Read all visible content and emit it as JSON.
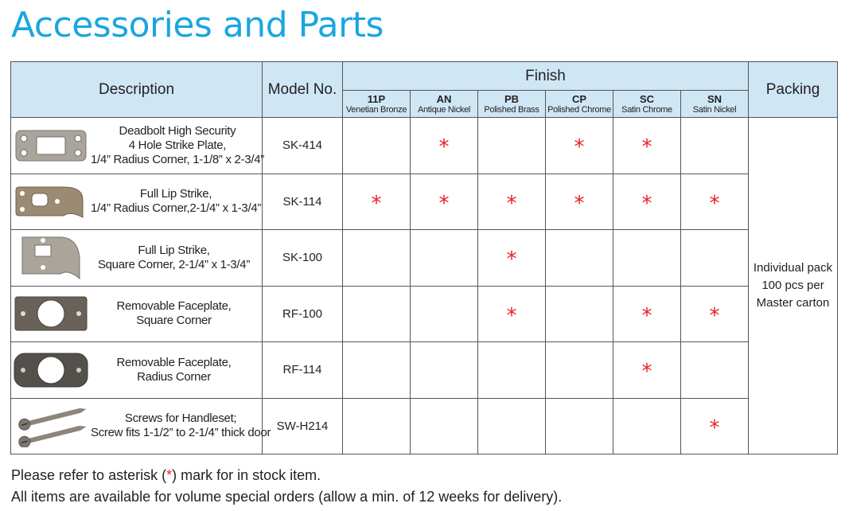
{
  "title": "Accessories and Parts",
  "headers": {
    "description": "Description",
    "model": "Model No.",
    "finish": "Finish",
    "packing": "Packing"
  },
  "finishes": [
    {
      "code": "11P",
      "name": "Venetian Bronze"
    },
    {
      "code": "AN",
      "name": "Antique Nickel"
    },
    {
      "code": "PB",
      "name": "Polished Brass"
    },
    {
      "code": "CP",
      "name": "Polished Chrome"
    },
    {
      "code": "SC",
      "name": "Satin Chrome"
    },
    {
      "code": "SN",
      "name": "Satin Nickel"
    }
  ],
  "rows": [
    {
      "desc": [
        "Deadbolt High Security",
        "4 Hole Strike Plate,",
        "1/4” Radius Corner, 1-1/8” x 2-3/4”"
      ],
      "model": "SK-414",
      "stock": [
        false,
        true,
        false,
        true,
        true,
        false
      ],
      "image": "deadbolt-strike-plate-image"
    },
    {
      "desc": [
        "Full Lip Strike,",
        "1/4” Radius Corner,2-1/4” x 1-3/4”"
      ],
      "model": "SK-114",
      "stock": [
        true,
        true,
        true,
        true,
        true,
        true
      ],
      "image": "full-lip-strike-radius-image"
    },
    {
      "desc": [
        "Full Lip Strike,",
        "Square Corner, 2-1/4” x 1-3/4”"
      ],
      "model": "SK-100",
      "stock": [
        false,
        false,
        true,
        false,
        false,
        false
      ],
      "image": "full-lip-strike-square-image"
    },
    {
      "desc": [
        "Removable Faceplate,",
        "Square Corner"
      ],
      "model": "RF-100",
      "stock": [
        false,
        false,
        true,
        false,
        true,
        true
      ],
      "image": "faceplate-square-image"
    },
    {
      "desc": [
        "Removable Faceplate,",
        "Radius Corner"
      ],
      "model": "RF-114",
      "stock": [
        false,
        false,
        false,
        false,
        true,
        false
      ],
      "image": "faceplate-radius-image"
    },
    {
      "desc": [
        "Screws for Handleset;",
        "Screw fits 1-1/2” to 2-1/4” thick door"
      ],
      "model": "SW-H214",
      "stock": [
        false,
        false,
        false,
        false,
        false,
        true
      ],
      "image": "screws-image"
    }
  ],
  "packing": [
    "Individual pack",
    "100 pcs per",
    "Master carton"
  ],
  "star_symbol": "*",
  "footnote": {
    "line1_pre": "Please refer to asterisk (",
    "line1_mark": "*",
    "line1_post": ") mark for in stock item.",
    "line2": "All items are available for volume special orders (allow a min. of 12 weeks for delivery)."
  },
  "colors": {
    "title": "#1aa6e0",
    "header_bg": "#cfe6f5",
    "asterisk": "#e8202a"
  }
}
